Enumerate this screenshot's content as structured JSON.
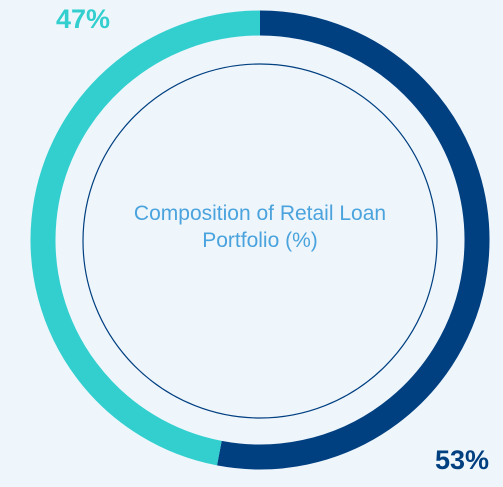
{
  "chart_data": {
    "type": "donut",
    "title": "Composition of Retail Loan Portfolio (%)",
    "values": [
      53,
      47
    ],
    "value_labels": [
      "53%",
      "47%"
    ],
    "colors": [
      "#003f80",
      "#33cfcf"
    ]
  }
}
